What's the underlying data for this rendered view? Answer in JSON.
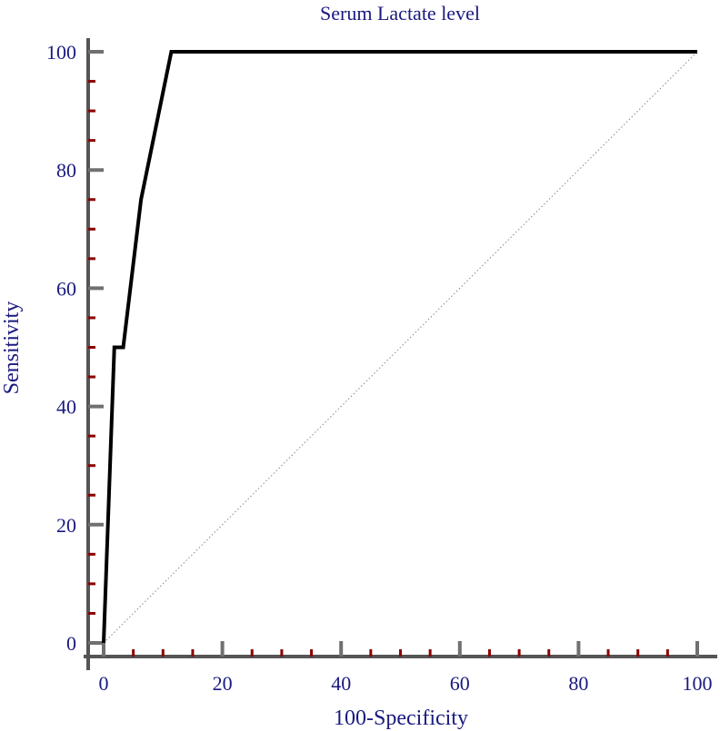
{
  "chart_data": {
    "type": "line",
    "title": "Serum Lactate level",
    "xlabel": "100-Specificity",
    "ylabel": "Sensitivity",
    "xlim": [
      0,
      100
    ],
    "ylim": [
      0,
      100
    ],
    "x_ticks": [
      0,
      20,
      40,
      60,
      80,
      100
    ],
    "y_ticks": [
      0,
      20,
      40,
      60,
      80,
      100
    ],
    "x_minor_ticks": [
      5,
      10,
      15,
      25,
      30,
      35,
      45,
      50,
      55,
      65,
      70,
      75,
      85,
      90,
      95
    ],
    "y_minor_ticks": [
      5,
      10,
      15,
      25,
      30,
      35,
      45,
      50,
      55,
      65,
      70,
      75,
      85,
      90,
      95
    ],
    "grid": false,
    "series": [
      {
        "points": [
          {
            "x": 0,
            "y": 0
          },
          {
            "x": 1.8,
            "y": 50
          },
          {
            "x": 3.3,
            "y": 50
          },
          {
            "x": 6.3,
            "y": 75
          },
          {
            "x": 11.4,
            "y": 100
          },
          {
            "x": 100,
            "y": 100
          }
        ]
      }
    ],
    "reference_line": {
      "points": [
        {
          "x": 0,
          "y": 0
        },
        {
          "x": 100,
          "y": 100
        }
      ],
      "style": "dotted"
    },
    "colors": {
      "text": "#1a1a80",
      "curve": "#000000",
      "axis": "#555555",
      "major_tick": "#707070",
      "minor_tick": "#8b0000",
      "reference": "#888888"
    }
  }
}
